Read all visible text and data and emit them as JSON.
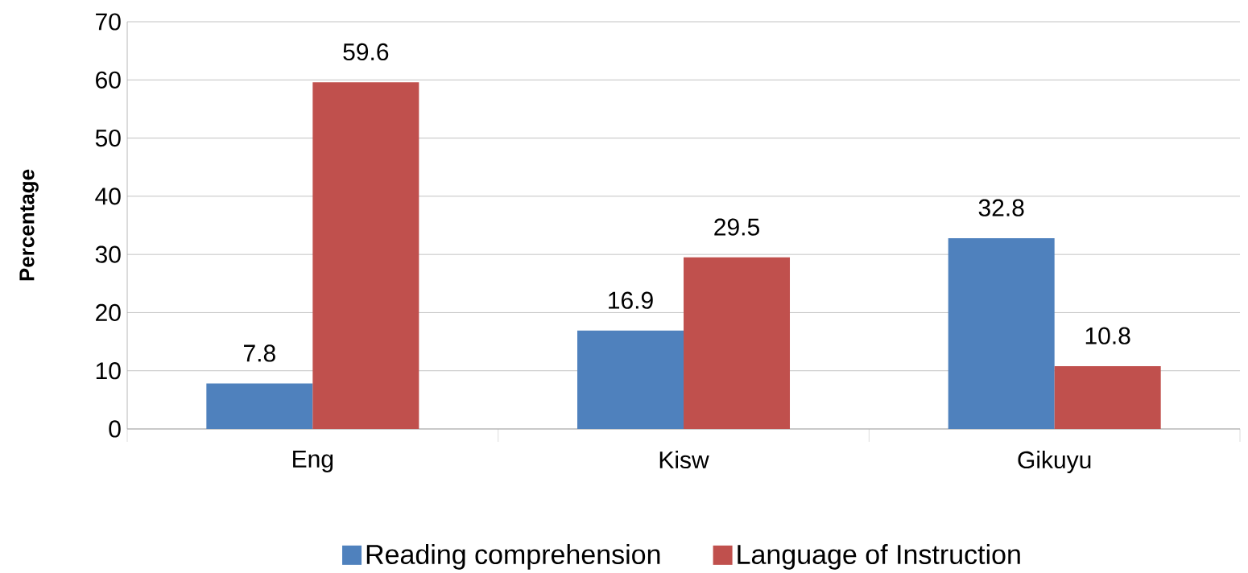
{
  "chart_data": {
    "type": "bar",
    "ylabel": "Percentage",
    "categories": [
      "Eng",
      "Kisw",
      "Gikuyu"
    ],
    "series": [
      {
        "name": "Reading comprehension",
        "color": "#4f81bd",
        "values": [
          7.8,
          16.9,
          32.8
        ]
      },
      {
        "name": "Language of Instruction",
        "color": "#c0504d",
        "values": [
          59.6,
          29.5,
          10.8
        ]
      }
    ],
    "ylim": [
      0,
      70
    ],
    "yticks": [
      0,
      10,
      20,
      30,
      40,
      50,
      60,
      70
    ],
    "grid": "y",
    "legend": "bottom",
    "data_labels": true
  }
}
